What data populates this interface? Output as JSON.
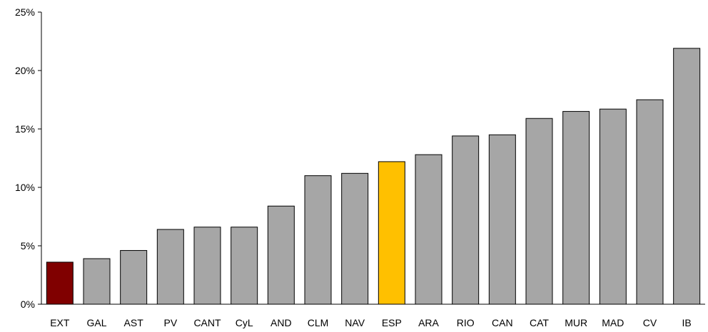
{
  "chart_data": {
    "type": "bar",
    "categories": [
      "EXT",
      "GAL",
      "AST",
      "PV",
      "CANT",
      "CyL",
      "AND",
      "CLM",
      "NAV",
      "ESP",
      "ARA",
      "RIO",
      "CAN",
      "CAT",
      "MUR",
      "MAD",
      "CV",
      "IB"
    ],
    "values": [
      3.6,
      3.9,
      4.6,
      6.4,
      6.6,
      6.6,
      8.4,
      11.0,
      11.2,
      12.2,
      12.8,
      14.4,
      14.5,
      15.9,
      16.5,
      16.7,
      17.5,
      21.9
    ],
    "ylim": [
      0,
      25
    ],
    "yticks": [
      0,
      5,
      10,
      15,
      20,
      25
    ],
    "ytick_labels": [
      "0%",
      "5%",
      "10%",
      "15%",
      "20%",
      "25%"
    ],
    "title": "",
    "xlabel": "",
    "ylabel": "",
    "grid": false,
    "colors": {
      "default": "#a6a6a6",
      "EXT": "#800000",
      "ESP": "#ffc000",
      "outline": "#000000"
    }
  }
}
